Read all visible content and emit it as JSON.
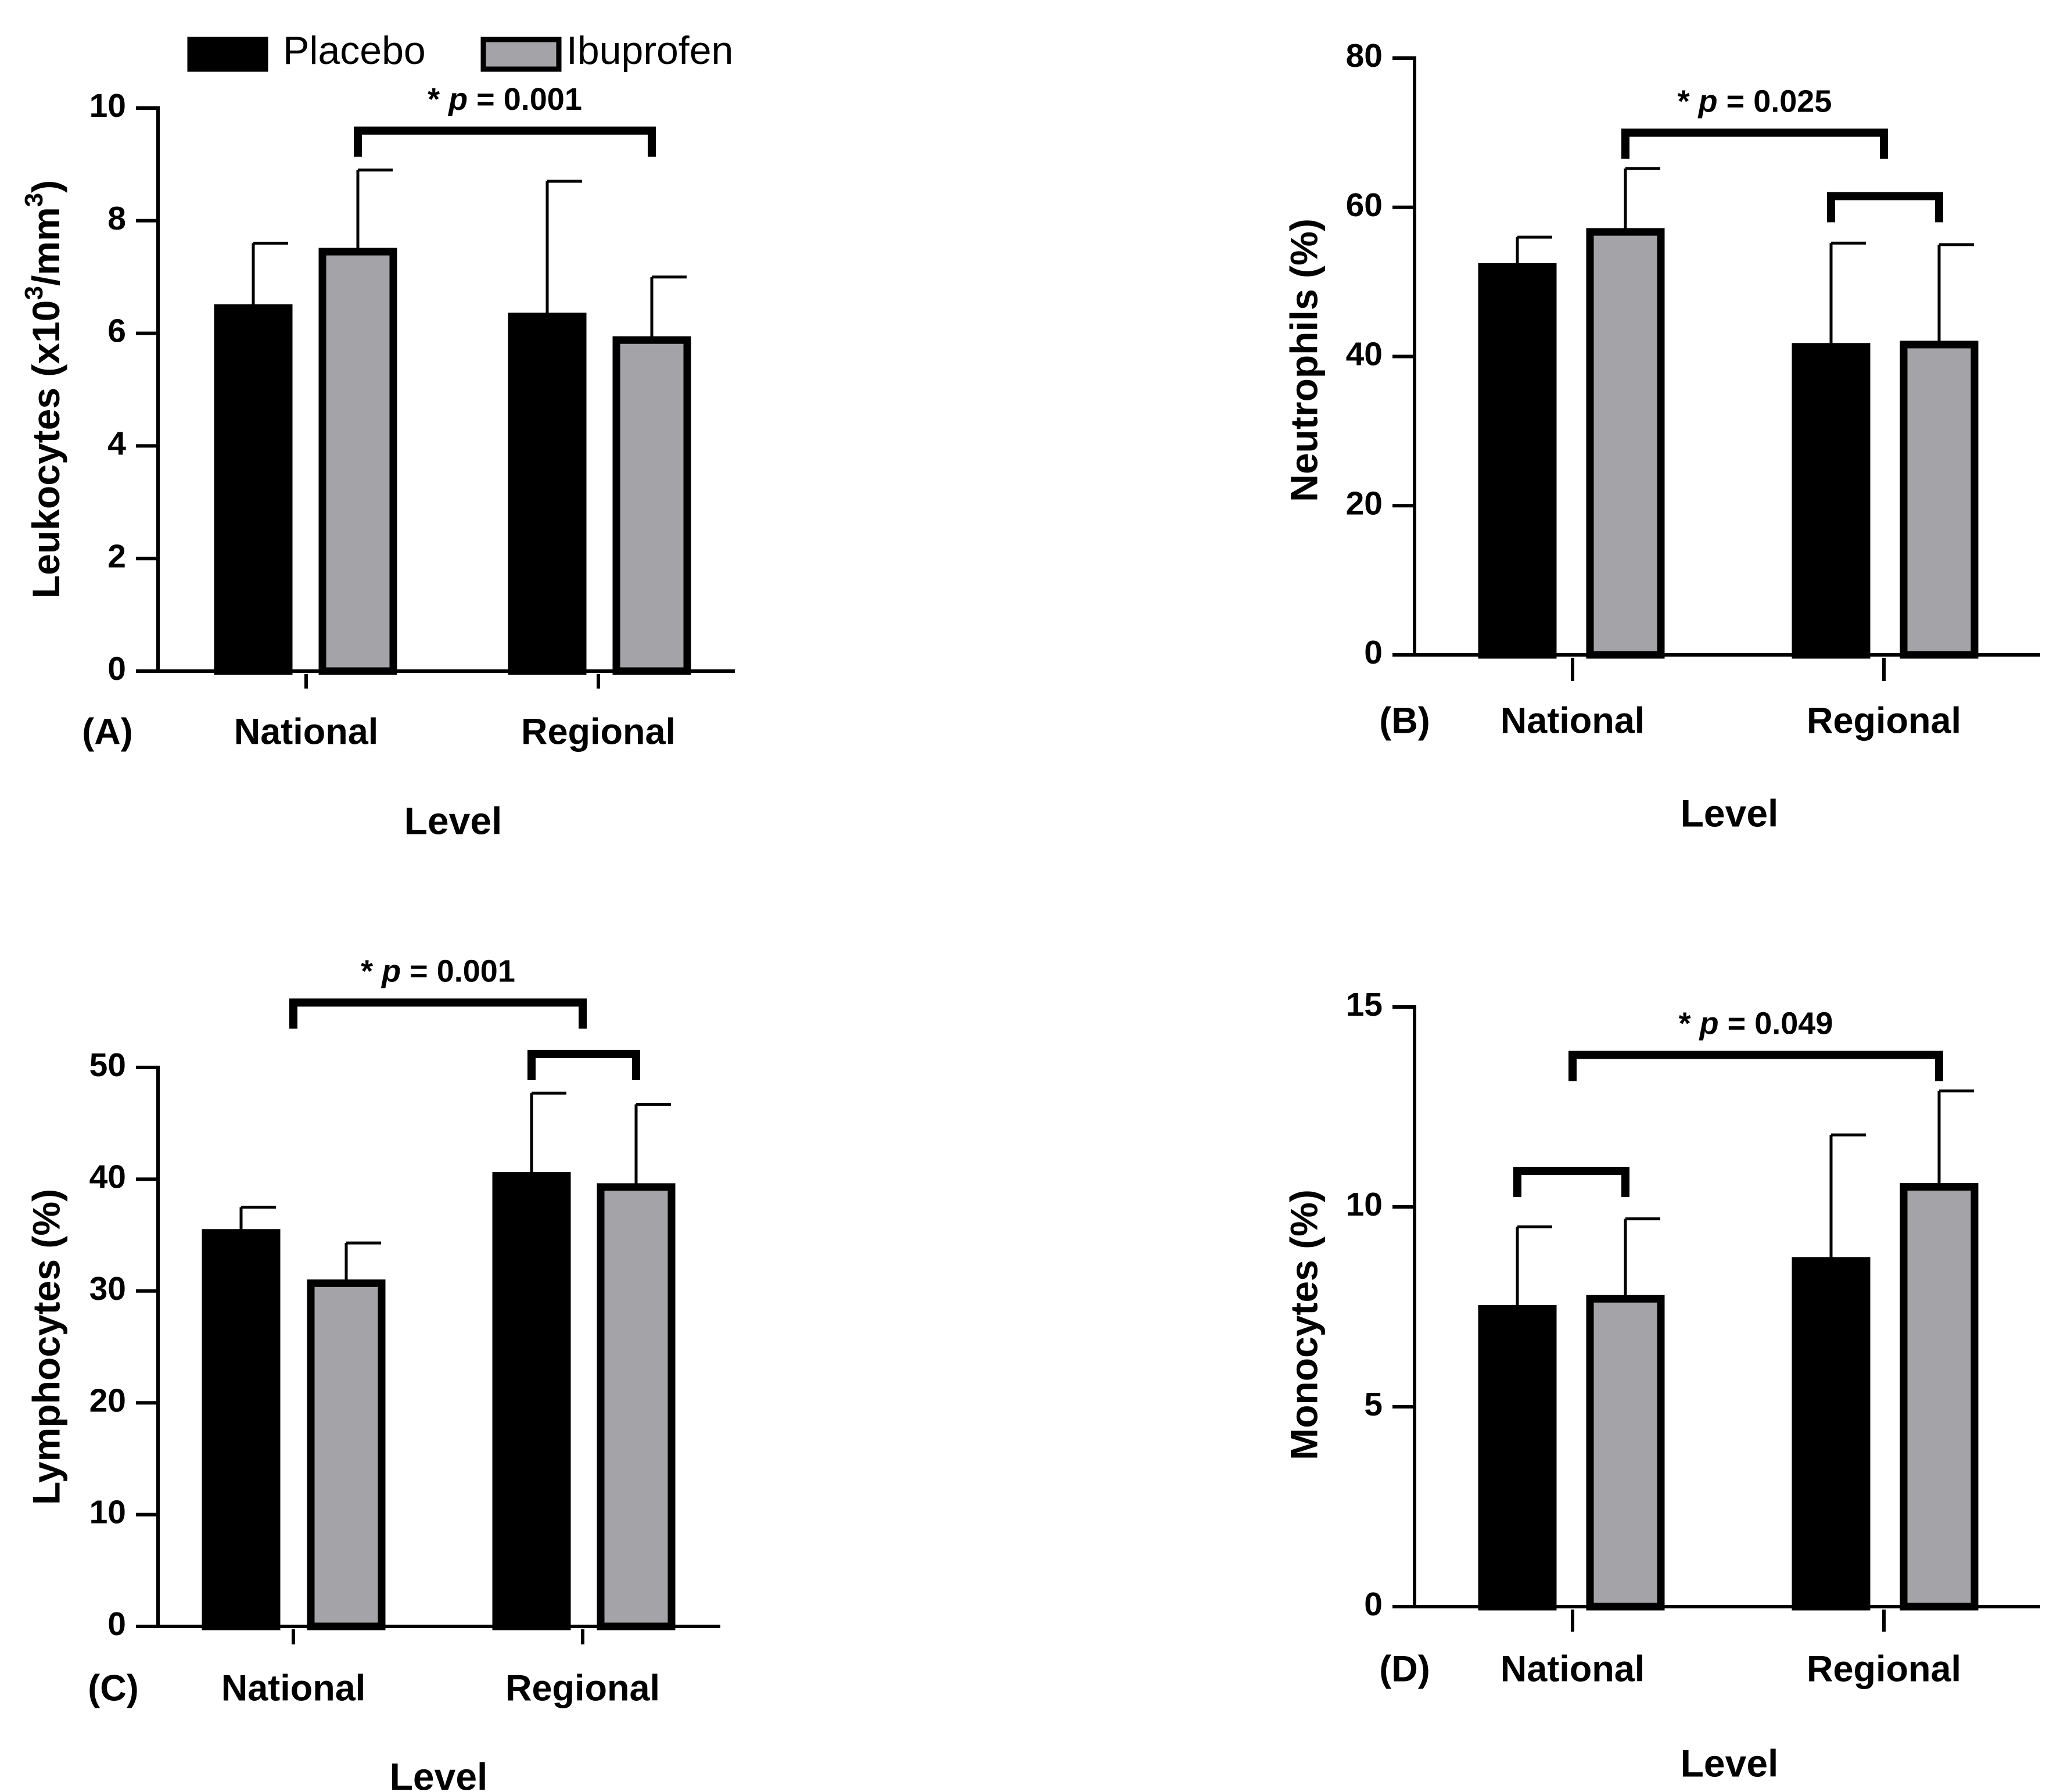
{
  "legend": {
    "items": [
      {
        "name": "Placebo",
        "color": "#000000"
      },
      {
        "name": "Ibuprofen",
        "color": "#a4a3a8"
      }
    ]
  },
  "chart_data": [
    {
      "type": "bar",
      "panel": "(A)",
      "categories": [
        "National",
        "Regional"
      ],
      "series": [
        {
          "name": "Placebo",
          "values": [
            6.45,
            6.3
          ],
          "error": [
            7.6,
            8.7
          ]
        },
        {
          "name": "Ibuprofen",
          "values": [
            7.45,
            5.88
          ],
          "error": [
            8.9,
            7.0
          ]
        }
      ],
      "xlabel": "Level",
      "ylabel": "Leukocytes (x10³/mm³)",
      "ylabel_parts": {
        "main": "Leukocytes (x10",
        "sup1": "3",
        "mid": "/mm",
        "sup2": "3",
        "end": ")"
      },
      "ylim": [
        0,
        10
      ],
      "yticks": [
        0,
        2,
        4,
        6,
        8,
        10
      ],
      "significance": [
        {
          "label_prefix": "* ",
          "label_p": "p",
          "label_value": " = 0.001",
          "from": [
            "National",
            "Ibuprofen"
          ],
          "to": [
            "Regional",
            "Ibuprofen"
          ],
          "y": 9.6
        }
      ]
    },
    {
      "type": "bar",
      "panel": "(B)",
      "categories": [
        "National",
        "Regional"
      ],
      "series": [
        {
          "name": "Placebo",
          "values": [
            52,
            41.3
          ],
          "error": [
            56,
            55.2
          ]
        },
        {
          "name": "Ibuprofen",
          "values": [
            56.7,
            41.6
          ],
          "error": [
            65.2,
            55
          ]
        }
      ],
      "xlabel": "Level",
      "ylabel": "Neutrophils (%)",
      "ylim": [
        0,
        80
      ],
      "yticks": [
        0,
        20,
        40,
        60,
        80
      ],
      "significance": [
        {
          "label_prefix": "* ",
          "label_p": "p",
          "label_value": " = 0.025",
          "from": [
            "National",
            "Ibuprofen"
          ],
          "to": [
            "Regional",
            "center"
          ],
          "y": 70
        },
        {
          "label_prefix": "",
          "label_p": "",
          "label_value": "",
          "from": [
            "Regional",
            "Placebo"
          ],
          "to": [
            "Regional",
            "Ibuprofen"
          ],
          "y": 61.5
        }
      ]
    },
    {
      "type": "bar",
      "panel": "(C)",
      "categories": [
        "National",
        "Regional"
      ],
      "series": [
        {
          "name": "Placebo",
          "values": [
            35.2,
            40.3
          ],
          "error": [
            37.5,
            47.7
          ]
        },
        {
          "name": "Ibuprofen",
          "values": [
            30.7,
            39.3
          ],
          "error": [
            34.3,
            46.7
          ]
        }
      ],
      "xlabel": "Level",
      "ylabel": "Lymphocytes (%)",
      "ylim": [
        0,
        50
      ],
      "yticks": [
        0,
        10,
        20,
        30,
        40,
        50
      ],
      "significance": [
        {
          "label_prefix": "* ",
          "label_p": "p",
          "label_value": " = 0.001",
          "from": [
            "National",
            "center"
          ],
          "to": [
            "Regional",
            "center"
          ],
          "y": 55.8
        },
        {
          "label_prefix": "",
          "label_p": "",
          "label_value": "",
          "from": [
            "Regional",
            "Placebo"
          ],
          "to": [
            "Regional",
            "Ibuprofen"
          ],
          "y": 51.2
        }
      ]
    },
    {
      "type": "bar",
      "panel": "(D)",
      "categories": [
        "National",
        "Regional"
      ],
      "series": [
        {
          "name": "Placebo",
          "values": [
            7.45,
            8.65
          ],
          "error": [
            9.5,
            11.8
          ]
        },
        {
          "name": "Ibuprofen",
          "values": [
            7.7,
            10.5
          ],
          "error": [
            9.7,
            12.9
          ]
        }
      ],
      "xlabel": "Level",
      "ylabel": "Monocytes (%)",
      "ylim": [
        0,
        15
      ],
      "yticks": [
        0,
        5,
        10,
        15
      ],
      "significance": [
        {
          "label_prefix": "* ",
          "label_p": "p",
          "label_value": " = 0.049",
          "from": [
            "National",
            "center"
          ],
          "to": [
            "Regional",
            "Ibuprofen"
          ],
          "y": 13.8
        },
        {
          "label_prefix": "",
          "label_p": "",
          "label_value": "",
          "from": [
            "National",
            "Placebo"
          ],
          "to": [
            "National",
            "Ibuprofen"
          ],
          "y": 10.9
        }
      ]
    }
  ]
}
